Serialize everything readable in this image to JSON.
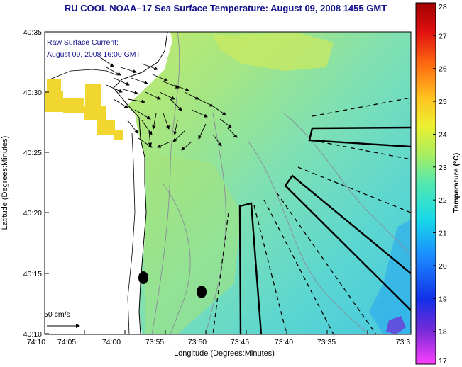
{
  "title": "RU COOL  NOAA–17  Sea Surface Temperature:  August 09, 2008 1455 GMT",
  "legend": {
    "line1": "Raw Surface Current:",
    "line2": "August 09, 2008 16:00 GMT",
    "scale_label": "50 cm/s"
  },
  "x_axis": {
    "label": "Longitude (Degrees:Minutes)",
    "ticks": [
      "74:10",
      "74:05",
      "74:00",
      "73:55",
      "73:50",
      "73:45",
      "73:40",
      "73:35",
      "73:3"
    ]
  },
  "y_axis": {
    "label": "Latitude (Degrees:Minutes)",
    "ticks": [
      "40:35",
      "40:30",
      "40:25",
      "40:20",
      "40:15",
      "40:10"
    ]
  },
  "colorbar": {
    "label": "Temperature (°C)",
    "ticks": [
      "28",
      "27",
      "26",
      "25",
      "24",
      "23",
      "22",
      "21",
      "20",
      "19",
      "18",
      "17"
    ],
    "min": 17,
    "max": 28,
    "colors": [
      "#ff40ff",
      "#7a2ad8",
      "#1230e8",
      "#1a8cff",
      "#18d8e8",
      "#52e8b0",
      "#a8ee60",
      "#ecf030",
      "#ffc020",
      "#ff6a10",
      "#e01010",
      "#a00000"
    ]
  },
  "colors": {
    "title": "#10108a",
    "sea_base": "#8ee0b0",
    "land": "#ffffff"
  }
}
